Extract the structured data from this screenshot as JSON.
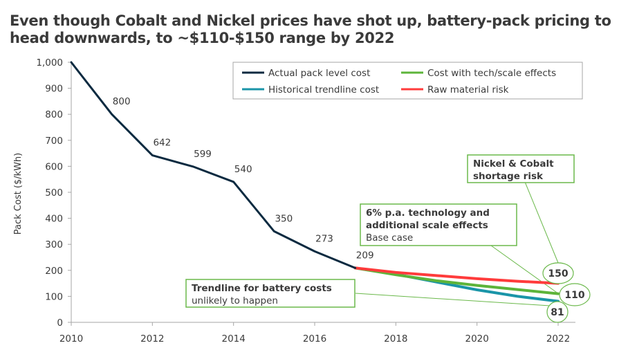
{
  "title": "Even though Cobalt and Nickel prices have shot up, battery-pack pricing to head downwards, to ~$110-$150 range by 2022",
  "colors": {
    "actual": "#0b2a40",
    "trendline": "#1a95a8",
    "tech": "#5db43a",
    "raw": "#ff3b3b",
    "annotation_border": "#6ab84a",
    "axis": "#a6a6a6",
    "text": "#3a3a3a"
  },
  "chart_data": {
    "type": "line",
    "title": "Even though Cobalt and Nickel prices have shot up, battery-pack pricing to head downwards, to ~$110-$150 range by 2022",
    "xlabel": "",
    "ylabel": "Pack Cost ($/kWh)",
    "xlim": [
      2010,
      2022
    ],
    "ylim": [
      0,
      1000
    ],
    "x_ticks": [
      "2010",
      "2012",
      "2014",
      "2016",
      "2018",
      "2020",
      "2022"
    ],
    "y_ticks": [
      "0",
      "100",
      "200",
      "300",
      "400",
      "500",
      "600",
      "700",
      "800",
      "900",
      "1,000"
    ],
    "grid": false,
    "legend_position": "top-right",
    "series": [
      {
        "key": "actual",
        "name": "Actual pack level cost",
        "x": [
          2010,
          2011,
          2012,
          2013,
          2014,
          2015,
          2016,
          2017
        ],
        "values": [
          1000,
          800,
          642,
          599,
          540,
          350,
          273,
          209
        ],
        "labels": [
          "",
          "800",
          "642",
          "599",
          "540",
          "350",
          "273",
          "209"
        ]
      },
      {
        "key": "trendline",
        "name": "Historical trendline cost",
        "x": [
          2017,
          2018,
          2019,
          2020,
          2021,
          2022
        ],
        "values": [
          209,
          185,
          155,
          125,
          100,
          81
        ]
      },
      {
        "key": "tech",
        "name": "Cost with tech/scale effects",
        "x": [
          2017,
          2018,
          2019,
          2020,
          2021,
          2022
        ],
        "values": [
          209,
          183,
          160,
          142,
          126,
          110
        ]
      },
      {
        "key": "raw",
        "name": "Raw material risk",
        "x": [
          2017,
          2018,
          2019,
          2020,
          2021,
          2022
        ],
        "values": [
          209,
          192,
          180,
          168,
          158,
          150
        ]
      }
    ],
    "legend": [
      {
        "key": "actual",
        "label": "Actual pack level cost"
      },
      {
        "key": "tech",
        "label": "Cost with tech/scale effects"
      },
      {
        "key": "trendline",
        "label": "Historical trendline cost"
      },
      {
        "key": "raw",
        "label": "Raw material risk"
      }
    ],
    "end_values": [
      {
        "key": "raw",
        "label": "150"
      },
      {
        "key": "tech",
        "label": "110"
      },
      {
        "key": "trendline",
        "label": "81"
      }
    ],
    "annotations": [
      {
        "key": "raw",
        "bold": [
          "Nickel & Cobalt",
          "shortage risk"
        ],
        "regular": []
      },
      {
        "key": "tech",
        "bold": [
          "6% p.a. technology and",
          "additional scale effects"
        ],
        "regular": [
          "Base case"
        ]
      },
      {
        "key": "trendline",
        "bold": [
          "Trendline for battery costs"
        ],
        "regular": [
          "unlikely to happen"
        ]
      }
    ]
  }
}
